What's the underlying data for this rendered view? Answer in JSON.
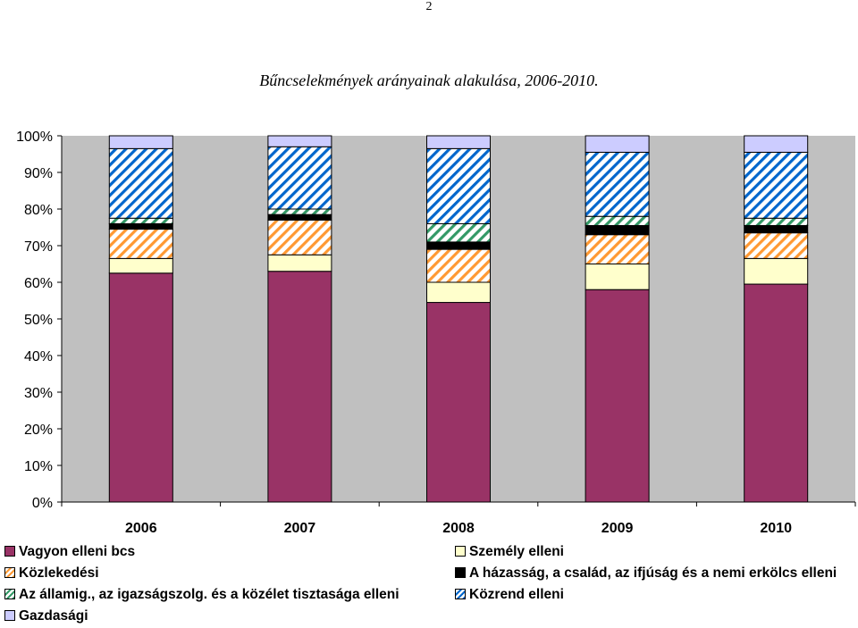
{
  "page": {
    "number": "2"
  },
  "chart_data": {
    "type": "bar",
    "stacked": true,
    "title": "Bűncselekmények arányainak alakulása, 2006-2010.",
    "categories": [
      "2006",
      "2007",
      "2008",
      "2009",
      "2010"
    ],
    "ylim": [
      0,
      100
    ],
    "yticks": [
      "0%",
      "10%",
      "20%",
      "30%",
      "40%",
      "50%",
      "60%",
      "70%",
      "80%",
      "90%",
      "100%"
    ],
    "grid": false,
    "plot_background": "#c0c0c0",
    "legend_position": "bottom",
    "series": [
      {
        "name": "Vagyon elleni bcs",
        "color": "#993366",
        "pattern": "solid",
        "values": [
          62.5,
          63.0,
          54.5,
          58.0,
          59.5
        ]
      },
      {
        "name": "Személy elleni",
        "color": "#ffffcc",
        "pattern": "solid",
        "values": [
          4.0,
          4.5,
          5.5,
          7.0,
          7.0
        ]
      },
      {
        "name": "Közlekedési",
        "color": "#ff9933",
        "pattern": "hatch",
        "values": [
          8.0,
          9.5,
          9.0,
          8.0,
          7.0
        ]
      },
      {
        "name": "A házasság, a család, az ifjúság és a nemi erkölcs elleni",
        "color": "#000000",
        "pattern": "solid",
        "values": [
          1.5,
          1.5,
          2.0,
          2.5,
          2.0
        ]
      },
      {
        "name": "Az államig., az igazságszolg. és a közélet tisztasága elleni",
        "color": "#339966",
        "pattern": "hatch",
        "values": [
          1.5,
          1.5,
          5.0,
          2.5,
          2.0
        ]
      },
      {
        "name": "Közrend elleni",
        "color": "#0066cc",
        "pattern": "hatch",
        "values": [
          19.0,
          17.0,
          20.5,
          17.5,
          18.0
        ]
      },
      {
        "name": "Gazdasági",
        "color": "#ccccff",
        "pattern": "solid",
        "values": [
          3.5,
          3.0,
          3.5,
          4.5,
          4.5
        ]
      }
    ]
  }
}
